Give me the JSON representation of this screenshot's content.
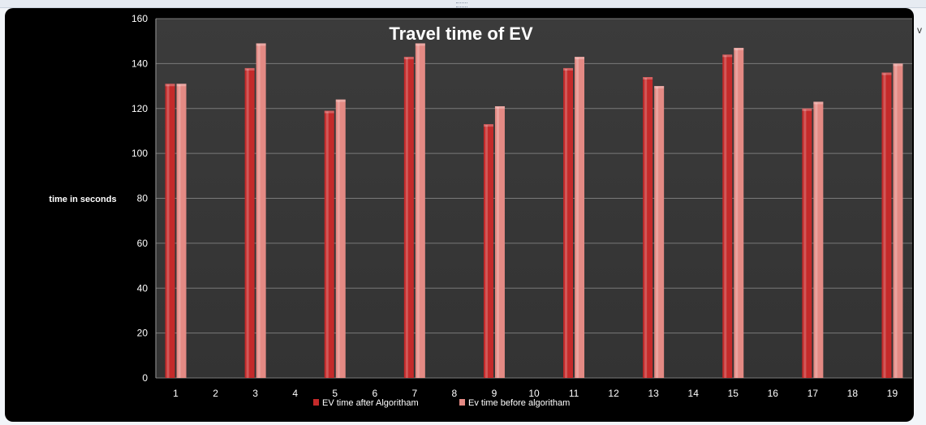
{
  "chart_data": {
    "type": "bar",
    "title": "Travel time of EV",
    "xlabel": "",
    "ylabel": "time in seconds",
    "ylim": [
      0,
      160
    ],
    "yticks": [
      0,
      20,
      40,
      60,
      80,
      100,
      120,
      140,
      160
    ],
    "categories": [
      "1",
      "2",
      "3",
      "4",
      "5",
      "6",
      "7",
      "8",
      "9",
      "10",
      "11",
      "12",
      "13",
      "14",
      "15",
      "16",
      "17",
      "18",
      "19"
    ],
    "series": [
      {
        "name": "EV time  after Algoritham",
        "color": "#c42a2a",
        "values": [
          131,
          null,
          138,
          null,
          119,
          null,
          143,
          null,
          113,
          null,
          138,
          null,
          134,
          null,
          144,
          null,
          120,
          null,
          136
        ]
      },
      {
        "name": "Ev time before algoritham",
        "color": "#e48a84",
        "values": [
          131,
          null,
          149,
          null,
          124,
          null,
          149,
          null,
          121,
          null,
          143,
          null,
          130,
          null,
          147,
          null,
          123,
          null,
          140
        ]
      }
    ],
    "grid": true,
    "legend_position": "bottom"
  }
}
